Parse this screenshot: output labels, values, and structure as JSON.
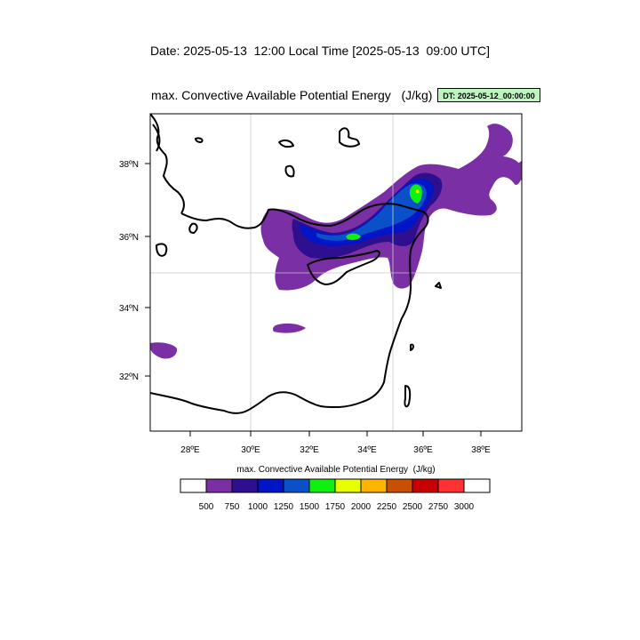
{
  "header": {
    "date_line": "Date: 2025-05-13  12:00 Local Time [2025-05-13  09:00 UTC]",
    "plot_title": "max. Convective Available Potential Energy   (J/kg)",
    "dt_label": "DT: 2025-05-12_00:00:00"
  },
  "map": {
    "lon_ticks": [
      "28ºE",
      "30ºE",
      "32ºE",
      "34ºE",
      "36ºE",
      "38ºE"
    ],
    "lat_ticks": [
      "38ºN",
      "36ºN",
      "34ºN",
      "32ºN"
    ],
    "grid_lines": [
      "35ºE",
      "35ºN"
    ],
    "region": "Eastern Mediterranean"
  },
  "colorbar": {
    "title": "max. Convective Available Potential Energy  (J/kg)",
    "labels": [
      "500",
      "750",
      "1000",
      "1250",
      "1500",
      "1750",
      "2000",
      "2250",
      "2500",
      "2750",
      "3000"
    ],
    "colors": [
      "#ffffff",
      "#7a2fa5",
      "#2d0f8f",
      "#0014c8",
      "#0a50c8",
      "#10f010",
      "#e8ff00",
      "#ffb400",
      "#c85000",
      "#c80000",
      "#ff3232",
      "#ffffff"
    ]
  },
  "colors": {
    "cape_500": "#7a2fa5",
    "cape_750": "#2d0f8f",
    "cape_1000": "#0014c8",
    "cape_1250": "#0a50c8",
    "cape_1500": "#10f010",
    "cape_1750": "#e8ff00",
    "dt_box": "#bff5bf"
  }
}
